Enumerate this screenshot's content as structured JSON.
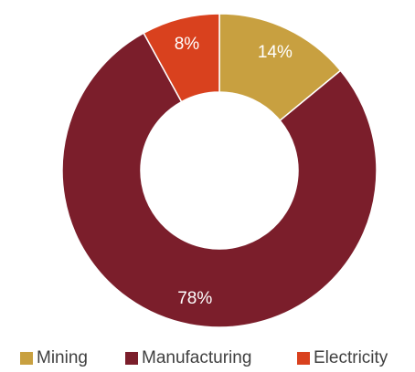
{
  "chart_data": {
    "type": "pie",
    "style": "donut",
    "labels": [
      "Mining",
      "Manufacturing",
      "Electricity"
    ],
    "values": [
      14,
      78,
      8
    ],
    "data_labels": [
      "14%",
      "78%",
      "8%"
    ],
    "colors": [
      "#c8a040",
      "#7b1e2b",
      "#d9411e"
    ],
    "legend_position": "bottom"
  }
}
